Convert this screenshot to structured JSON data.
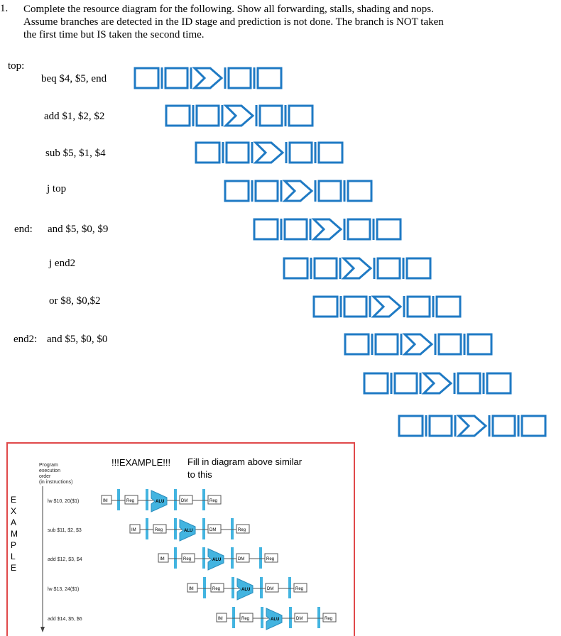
{
  "question": {
    "number": "1.",
    "text": "Complete the resource diagram for the following. Show all forwarding, stalls, shading and nops.  Assume branches are detected in the ID stage and prediction is not done.  The branch is NOT taken the first time but IS taken the second time."
  },
  "program": [
    {
      "label": "top:",
      "instruction": "beq $4, $5, end"
    },
    {
      "label": "",
      "instruction": "add $1, $2, $2"
    },
    {
      "label": "",
      "instruction": "sub $5, $1, $4"
    },
    {
      "label": "",
      "instruction": "j top"
    },
    {
      "label": "end:",
      "instruction": "and $5, $0, $9"
    },
    {
      "label": "",
      "instruction": "j end2"
    },
    {
      "label": "",
      "instruction": "or $8, $0,$2"
    },
    {
      "label": "end2:",
      "instruction": "and $5, $0, $0"
    }
  ],
  "pipeline_rows": 10,
  "colors": {
    "stage_stroke": "#1f7ac4",
    "example_border": "#e0494a",
    "example_blue": "#43b4e0"
  },
  "example": {
    "heading": "!!!EXAMPLE!!!",
    "note": "Fill in diagram above similar to this",
    "side_letters": [
      "E",
      "X",
      "A",
      "M",
      "P",
      "L",
      "E"
    ],
    "order_label": [
      "Program",
      "execution",
      "order",
      "(in instructions)"
    ],
    "instructions": [
      "lw $10, 20($1)",
      "sub $11, $2, $3",
      "add $12, $3, $4",
      "lw $13, 24($1)",
      "add $14, $5, $6"
    ],
    "stage_labels": [
      "IM",
      "Reg",
      "ALU",
      "DM",
      "Reg"
    ]
  }
}
